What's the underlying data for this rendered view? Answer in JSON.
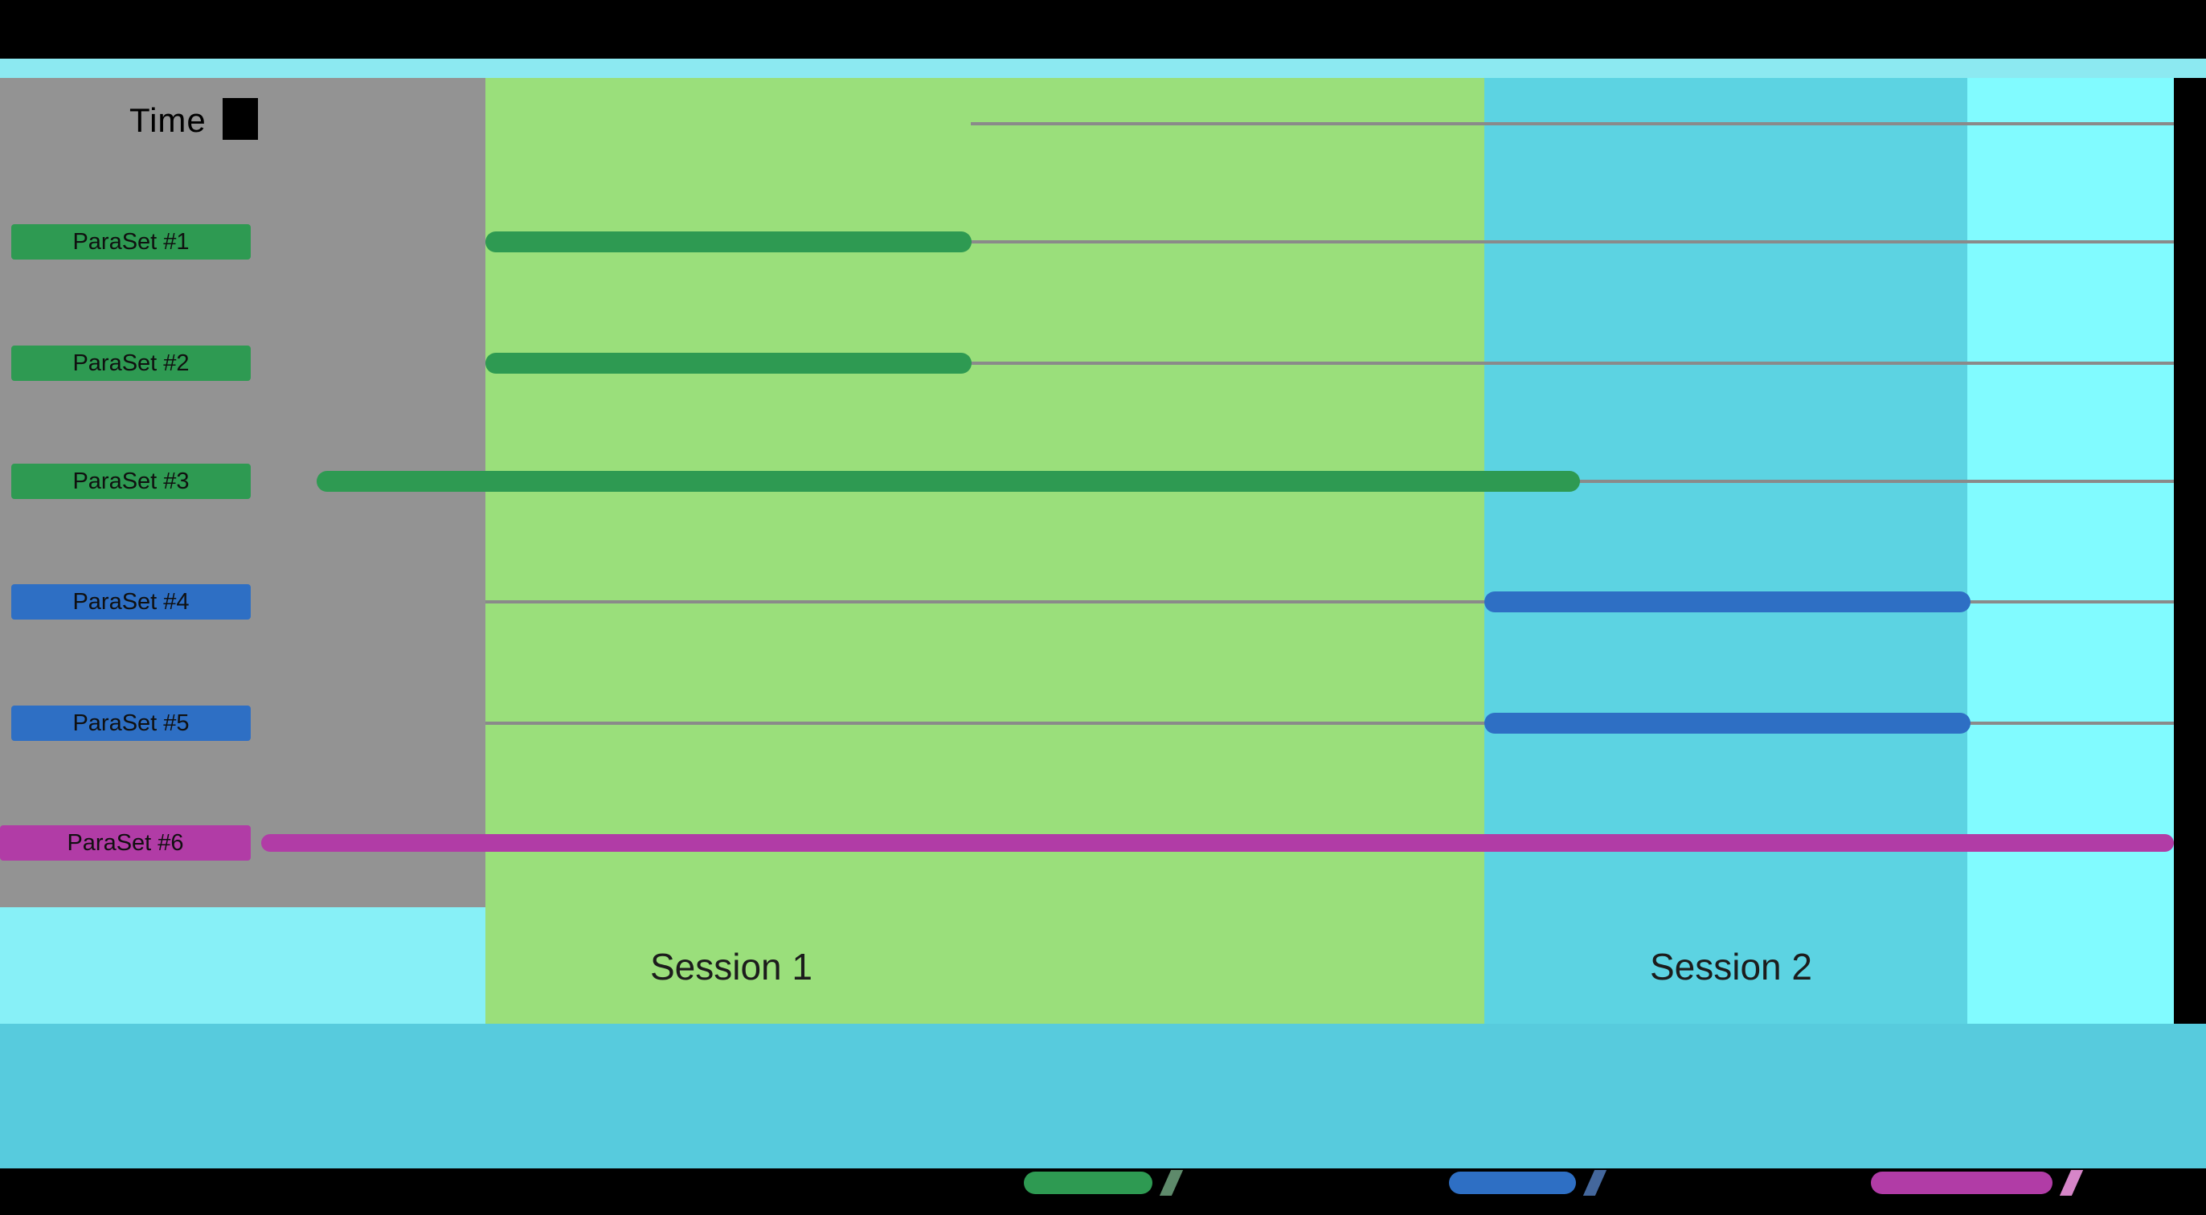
{
  "header": {
    "time_label": "Time"
  },
  "chart_data": {
    "type": "bar",
    "subtype": "gantt-timeline",
    "title": "",
    "xlabel": "Time",
    "axis_note": "start/end are fractions of the visible timeline width (estimated from pixel positions; no numeric axis ticks are shown)",
    "grid": "horizontal gridlines per row",
    "rows": [
      {
        "label": "ParaSet #1",
        "series": "green",
        "start": 0.121,
        "end": 0.374
      },
      {
        "label": "ParaSet #2",
        "series": "green",
        "start": 0.121,
        "end": 0.374
      },
      {
        "label": "ParaSet #3",
        "series": "green",
        "start": 0.033,
        "end": 0.691
      },
      {
        "label": "ParaSet #4",
        "series": "blue",
        "start": 0.641,
        "end": 0.894
      },
      {
        "label": "ParaSet #5",
        "series": "blue",
        "start": 0.641,
        "end": 0.894
      },
      {
        "label": "ParaSet #6",
        "series": "magenta",
        "start": 0.004,
        "end": 1.0
      }
    ],
    "sessions": [
      {
        "label": "Session 1",
        "start": 0.121,
        "end": 0.641
      },
      {
        "label": "Session 2",
        "start": 0.641,
        "end": 0.893
      }
    ]
  },
  "legend": {
    "items": [
      {
        "series": "green",
        "color": "#2E9A52",
        "slash_color": "#5E8A6B",
        "x": 1274,
        "swatch_width": 160
      },
      {
        "series": "blue",
        "color": "#2E6FC4",
        "slash_color": "#44679C",
        "x": 1803,
        "swatch_width": 158
      },
      {
        "series": "magenta",
        "color": "#B13CA6",
        "slash_color": "#D685C8",
        "x": 2328,
        "swatch_width": 226
      }
    ]
  },
  "colors": {
    "bar_green": "#2E9A52",
    "bar_blue": "#2E6FC4",
    "bar_magenta": "#B13CA6",
    "session1_bg": "#9ADF7B",
    "session2_bg": "#5CD3E2",
    "panel_gray": "#939393",
    "top_strip": "#8CE9F1",
    "bottom_band": "#57CBDD",
    "right_column": "#81FBFF",
    "lower_left": "#87F0F7",
    "gridline": "#8A8A8A",
    "background": "#000000",
    "label_text": "#101010",
    "session_text": "#1C1C1C"
  }
}
